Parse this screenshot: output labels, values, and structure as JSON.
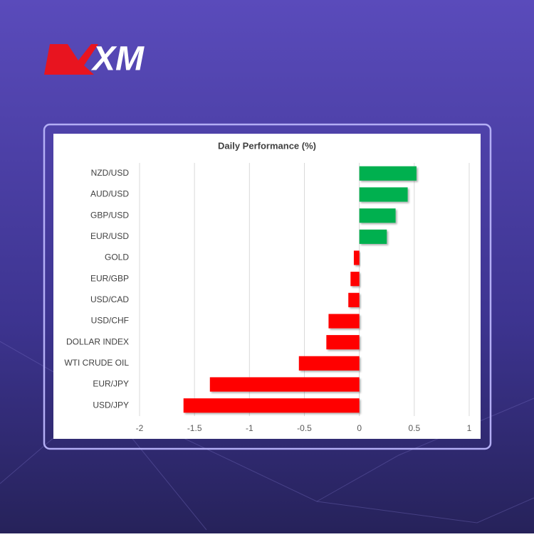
{
  "logo": "XM",
  "chart_data": {
    "type": "bar",
    "orientation": "horizontal",
    "title": "Daily Performance (%)",
    "categories": [
      "NZD/USD",
      "AUD/USD",
      "GBP/USD",
      "EUR/USD",
      "GOLD",
      "EUR/GBP",
      "USD/CAD",
      "USD/CHF",
      "DOLLAR INDEX",
      "WTI CRUDE OIL",
      "EUR/JPY",
      "USD/JPY"
    ],
    "values": [
      0.52,
      0.44,
      0.33,
      0.25,
      -0.05,
      -0.08,
      -0.1,
      -0.28,
      -0.3,
      -0.55,
      -1.36,
      -1.6
    ],
    "colors": [
      "#00b050",
      "#00b050",
      "#00b050",
      "#00b050",
      "#ff0000",
      "#ff0000",
      "#ff0000",
      "#ff0000",
      "#ff0000",
      "#ff0000",
      "#ff0000",
      "#ff0000"
    ],
    "xlim": [
      -2,
      1
    ],
    "xticks": [
      -2,
      -1.5,
      -1,
      -0.5,
      0,
      0.5,
      1
    ],
    "grid": true
  }
}
